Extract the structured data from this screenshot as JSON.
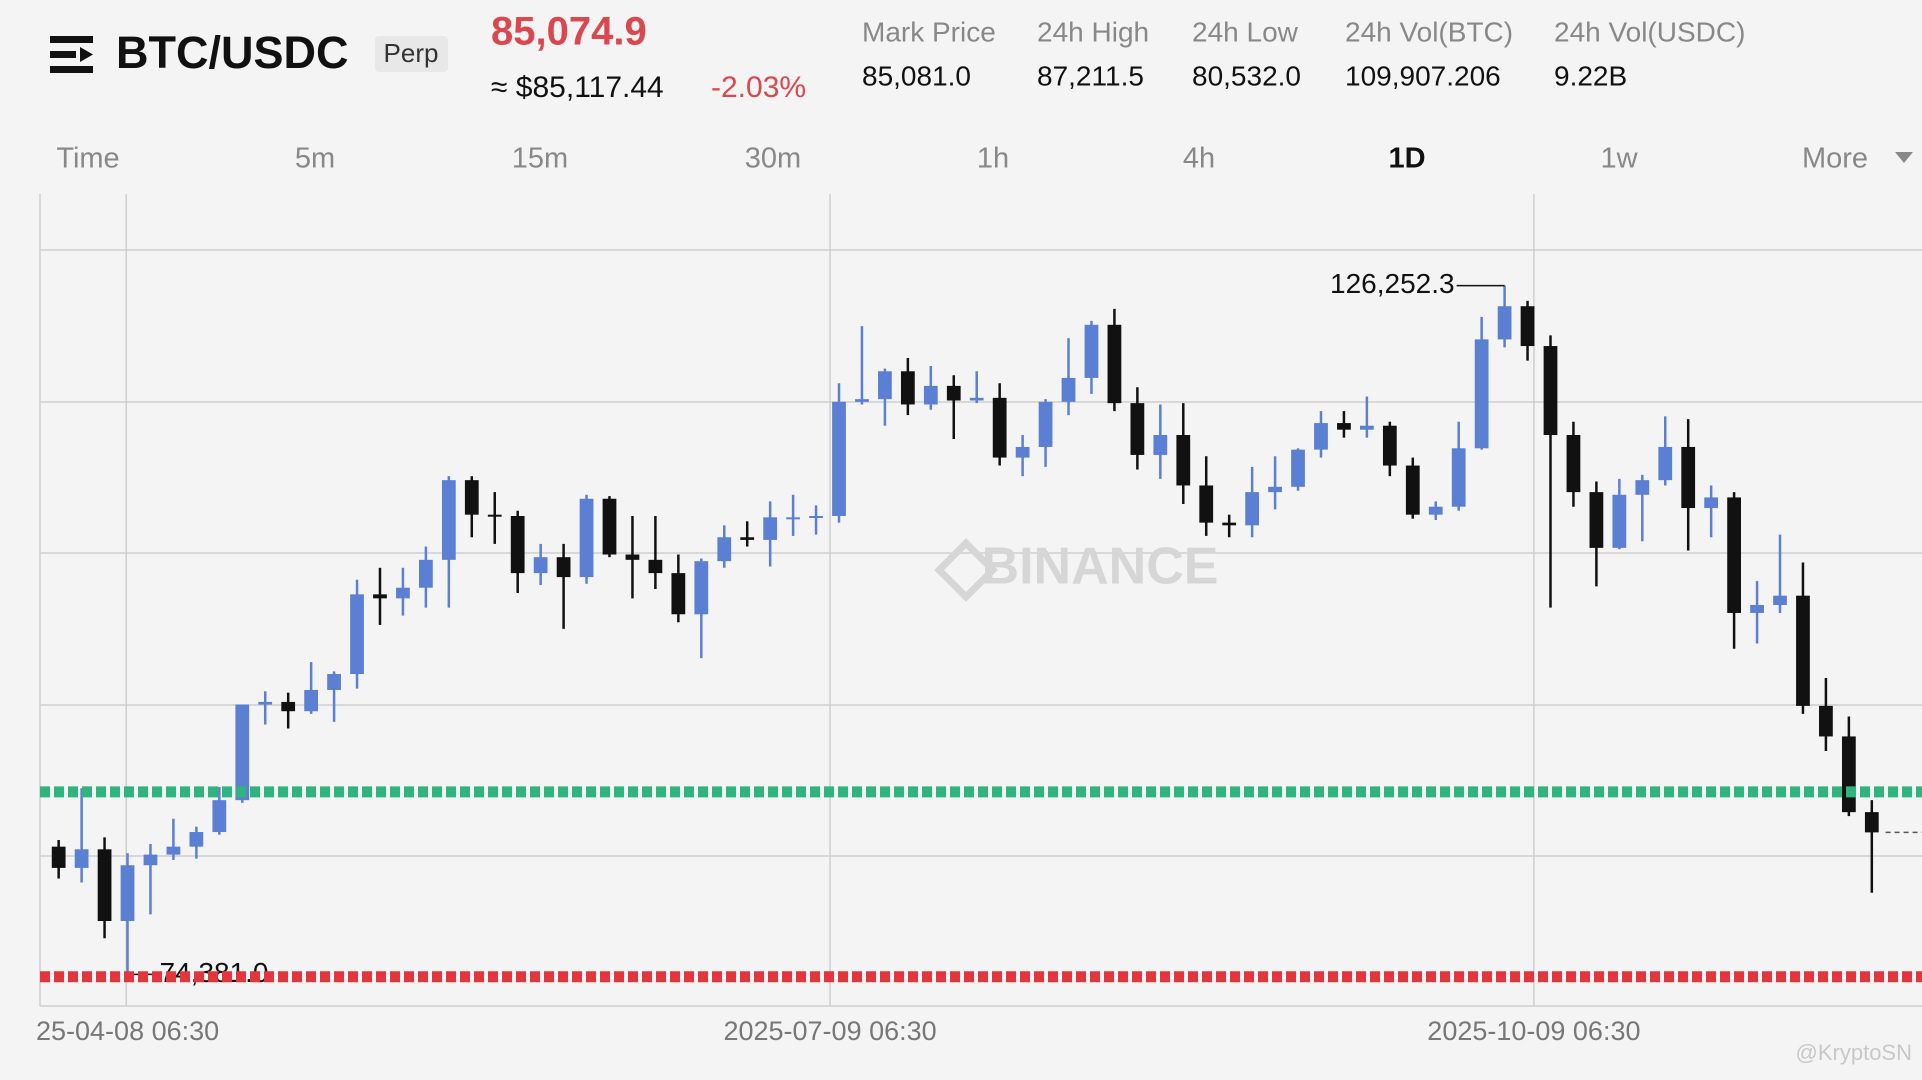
{
  "header": {
    "symbol": "BTC/USDC",
    "contract": "Perp",
    "last_price": "85,074.9",
    "index_price": "≈ $85,117.44",
    "change": "-2.03%",
    "stats": [
      {
        "label": "Mark Price",
        "value": "85,081.0"
      },
      {
        "label": "24h High",
        "value": "87,211.5"
      },
      {
        "label": "24h Low",
        "value": "80,532.0"
      },
      {
        "label": "24h Vol(BTC)",
        "value": "109,907.206"
      },
      {
        "label": "24h Vol(USDC)",
        "value": "9.22B"
      }
    ]
  },
  "tabs": [
    "Time",
    "5m",
    "15m",
    "30m",
    "1h",
    "4h",
    "1D",
    "1w",
    "More"
  ],
  "active_tab": 6,
  "chart_data": {
    "type": "candlestick",
    "up_color": "#5a7fd3",
    "down_color": "#111111",
    "xlim": [
      "2025-03-28",
      "2025-11-29"
    ],
    "ylim": [
      72000,
      133150
    ],
    "xticks": [
      {
        "value": "2025-04-08 06:30",
        "label": "25-04-08 06:30"
      },
      "2025-07-09 06:30",
      "2025-10-09 06:30"
    ],
    "x": [
      "2025-03-29",
      "2025-04-01",
      "2025-04-04",
      "2025-04-07",
      "2025-04-10",
      "2025-04-13",
      "2025-04-16",
      "2025-04-19",
      "2025-04-22",
      "2025-04-25",
      "2025-04-28",
      "2025-05-01",
      "2025-05-04",
      "2025-05-07",
      "2025-05-10",
      "2025-05-13",
      "2025-05-16",
      "2025-05-19",
      "2025-05-22",
      "2025-05-25",
      "2025-05-28",
      "2025-05-31",
      "2025-06-03",
      "2025-06-06",
      "2025-06-09",
      "2025-06-12",
      "2025-06-15",
      "2025-06-18",
      "2025-06-21",
      "2025-06-24",
      "2025-06-27",
      "2025-06-30",
      "2025-07-03",
      "2025-07-06",
      "2025-07-09",
      "2025-07-12",
      "2025-07-15",
      "2025-07-18",
      "2025-07-21",
      "2025-07-24",
      "2025-07-27",
      "2025-07-30",
      "2025-08-02",
      "2025-08-05",
      "2025-08-08",
      "2025-08-11",
      "2025-08-14",
      "2025-08-17",
      "2025-08-20",
      "2025-08-23",
      "2025-08-26",
      "2025-08-29",
      "2025-09-01",
      "2025-09-04",
      "2025-09-07",
      "2025-09-10",
      "2025-09-13",
      "2025-09-16",
      "2025-09-19",
      "2025-09-22",
      "2025-09-25",
      "2025-09-28",
      "2025-10-01",
      "2025-10-04",
      "2025-10-07",
      "2025-10-10",
      "2025-10-13",
      "2025-10-16",
      "2025-10-19",
      "2025-10-22",
      "2025-10-25",
      "2025-10-28",
      "2025-10-31",
      "2025-11-03",
      "2025-11-06",
      "2025-11-09",
      "2025-11-12",
      "2025-11-15",
      "2025-11-18",
      "2025-11-21"
    ],
    "open": [
      84000,
      82400,
      83800,
      78400,
      82600,
      83400,
      84000,
      85100,
      87500,
      94700,
      94900,
      94200,
      95800,
      97000,
      103000,
      102700,
      103500,
      105600,
      111600,
      109000,
      108900,
      104600,
      105800,
      104300,
      110200,
      106000,
      105600,
      104600,
      101500,
      105500,
      107300,
      107100,
      108800,
      108800,
      108900,
      117500,
      117700,
      119800,
      117300,
      118700,
      117600,
      117800,
      113300,
      114100,
      117500,
      119300,
      123300,
      117400,
      113500,
      115000,
      111200,
      108400,
      108200,
      110700,
      111100,
      113900,
      115900,
      115400,
      115700,
      112700,
      109000,
      109600,
      114000,
      122200,
      124700,
      121700,
      115000,
      110700,
      106500,
      110500,
      111600,
      114100,
      109500,
      110300,
      101600,
      102200,
      102900,
      94600,
      92300,
      86600
    ],
    "high": [
      84500,
      88400,
      84700,
      83500,
      84200,
      86100,
      85500,
      88500,
      94700,
      95700,
      95600,
      97900,
      97200,
      104100,
      105000,
      105000,
      106600,
      111900,
      111900,
      110700,
      109300,
      106800,
      106800,
      110500,
      110400,
      108900,
      108900,
      106000,
      105700,
      108200,
      108500,
      110000,
      110500,
      109700,
      118900,
      123200,
      120000,
      120800,
      120200,
      119500,
      119800,
      118900,
      115000,
      117700,
      122300,
      123600,
      124500,
      118600,
      117300,
      117400,
      113400,
      109000,
      112600,
      113400,
      114000,
      116800,
      116800,
      117900,
      116000,
      113300,
      110000,
      116000,
      123900,
      126252.3,
      125100,
      122500,
      116000,
      111500,
      111700,
      112000,
      116400,
      116200,
      111200,
      110700,
      104000,
      107500,
      105400,
      96700,
      93800,
      87500
    ],
    "low": [
      81600,
      81300,
      77100,
      74381,
      78900,
      83000,
      83100,
      84900,
      87300,
      93200,
      92900,
      94000,
      93400,
      95900,
      100700,
      101400,
      102000,
      102000,
      107300,
      106800,
      103100,
      103700,
      100400,
      103800,
      105800,
      102700,
      103400,
      100900,
      98200,
      105000,
      106600,
      105100,
      107400,
      107500,
      108400,
      117300,
      115700,
      116500,
      116900,
      114700,
      117400,
      112700,
      111900,
      112600,
      116500,
      118100,
      116800,
      112400,
      111700,
      109800,
      107400,
      107300,
      107300,
      109400,
      110800,
      113300,
      114800,
      114800,
      111900,
      108700,
      108600,
      109300,
      113900,
      121600,
      120600,
      102000,
      109600,
      103600,
      106400,
      107000,
      111200,
      106300,
      107300,
      98900,
      99300,
      101600,
      94000,
      91200,
      86300,
      80532
    ],
    "close": [
      82400,
      83800,
      78400,
      82600,
      83400,
      84000,
      85100,
      87500,
      94700,
      94900,
      94200,
      95800,
      97000,
      103000,
      102700,
      103500,
      105600,
      111600,
      109000,
      108900,
      104600,
      105800,
      104300,
      110200,
      106000,
      105600,
      104600,
      101500,
      105500,
      107300,
      107100,
      108800,
      108800,
      108900,
      117500,
      117700,
      119800,
      117300,
      118700,
      117600,
      117800,
      113300,
      114100,
      117500,
      119300,
      123300,
      117400,
      113500,
      115000,
      111200,
      108400,
      108200,
      110700,
      111100,
      113900,
      115900,
      115400,
      115700,
      112700,
      109000,
      109600,
      114000,
      122200,
      124700,
      121700,
      115000,
      110700,
      106500,
      110500,
      111600,
      114100,
      109500,
      110300,
      101600,
      102200,
      102900,
      94600,
      92300,
      86600,
      85074.9
    ],
    "annotations": [
      {
        "value": 126252.3,
        "label": "126,252.3"
      },
      {
        "value": 74381,
        "label": "74,381.0"
      }
    ],
    "lines": [
      {
        "value": 88130,
        "color": "#2fb37f"
      },
      {
        "value": 74200,
        "color": "#e0363c"
      }
    ],
    "watermark": "BINANCE",
    "credit": "@KryptoSN"
  }
}
